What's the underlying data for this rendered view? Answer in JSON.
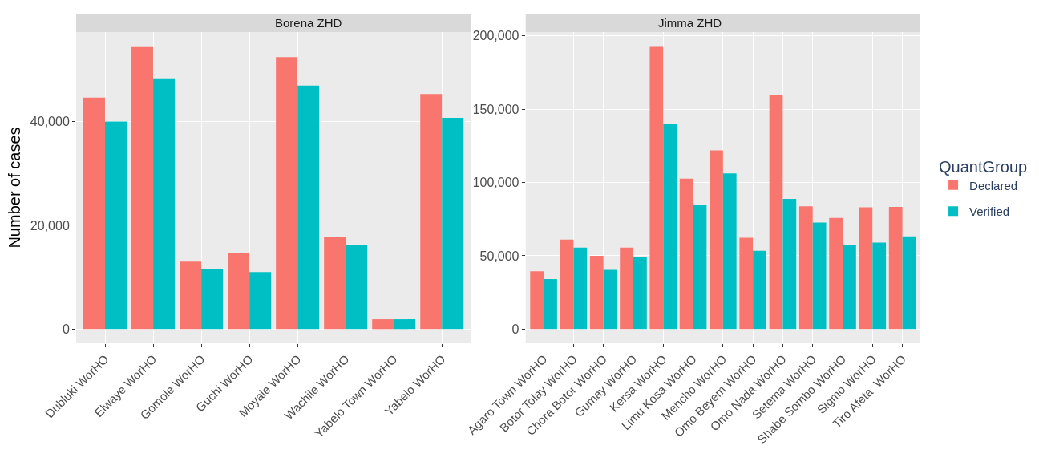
{
  "chart_data": [
    {
      "type": "bar",
      "title": "Borena ZHD",
      "ylabel": "Number of cases",
      "legend": "right",
      "categories": [
        "Dubluki WorHO",
        "Elwaye WorHO",
        "Gomole WorHO",
        "Guchi WorHO",
        "Moyale WorHO",
        "Wachile WorHO",
        "Yabelo Town WorHO",
        "Yabelo WorHO"
      ],
      "series": [
        {
          "name": "Declared",
          "color": "#f8766d",
          "values": [
            44600,
            54500,
            13000,
            14700,
            52400,
            17800,
            1900,
            45300
          ]
        },
        {
          "name": "Verified",
          "color": "#00bfc4",
          "values": [
            40000,
            48300,
            11600,
            11000,
            46900,
            16200,
            1900,
            40700
          ]
        }
      ],
      "ylim": [
        -2725,
        57225
      ],
      "yticks": [
        {
          "value": 0,
          "label": "0"
        },
        {
          "value": 20000,
          "label": "20,000"
        },
        {
          "value": 40000,
          "label": "40,000"
        }
      ],
      "grid": true
    },
    {
      "type": "bar",
      "title": "Jimma ZHD",
      "legend_title": "QuantGroup",
      "legend": "right",
      "categories": [
        "Agaro Town WorHO",
        "Botor Tolay WorHO",
        "Chora Botor WorHO",
        "Gumay WorHO",
        "Kersa WorHO",
        "Limu Kosa WorHO",
        "Mencho WorHO",
        "Omo Beyem WorHO",
        "Omo Nada WorHO",
        "Setema WorHO",
        "Shabe Sombo WorHO",
        "Sigmo WorHO",
        "Tiro Afeta  WorHO"
      ],
      "series": [
        {
          "name": "Declared",
          "color": "#f8766d",
          "values": [
            39400,
            61000,
            50000,
            55600,
            193000,
            102600,
            121900,
            62300,
            160000,
            83700,
            75900,
            83100,
            83300
          ]
        },
        {
          "name": "Verified",
          "color": "#00bfc4",
          "values": [
            34100,
            55600,
            40400,
            49400,
            140200,
            84500,
            106200,
            53400,
            88800,
            72700,
            57400,
            59000,
            63300
          ]
        }
      ],
      "ylim": [
        -9650,
        202620
      ],
      "yticks": [
        {
          "value": 0,
          "label": "0"
        },
        {
          "value": 50000,
          "label": "50,000"
        },
        {
          "value": 100000,
          "label": "100,000"
        },
        {
          "value": 150000,
          "label": "150,000"
        },
        {
          "value": 200000,
          "label": "200,000"
        }
      ],
      "grid": true
    }
  ]
}
